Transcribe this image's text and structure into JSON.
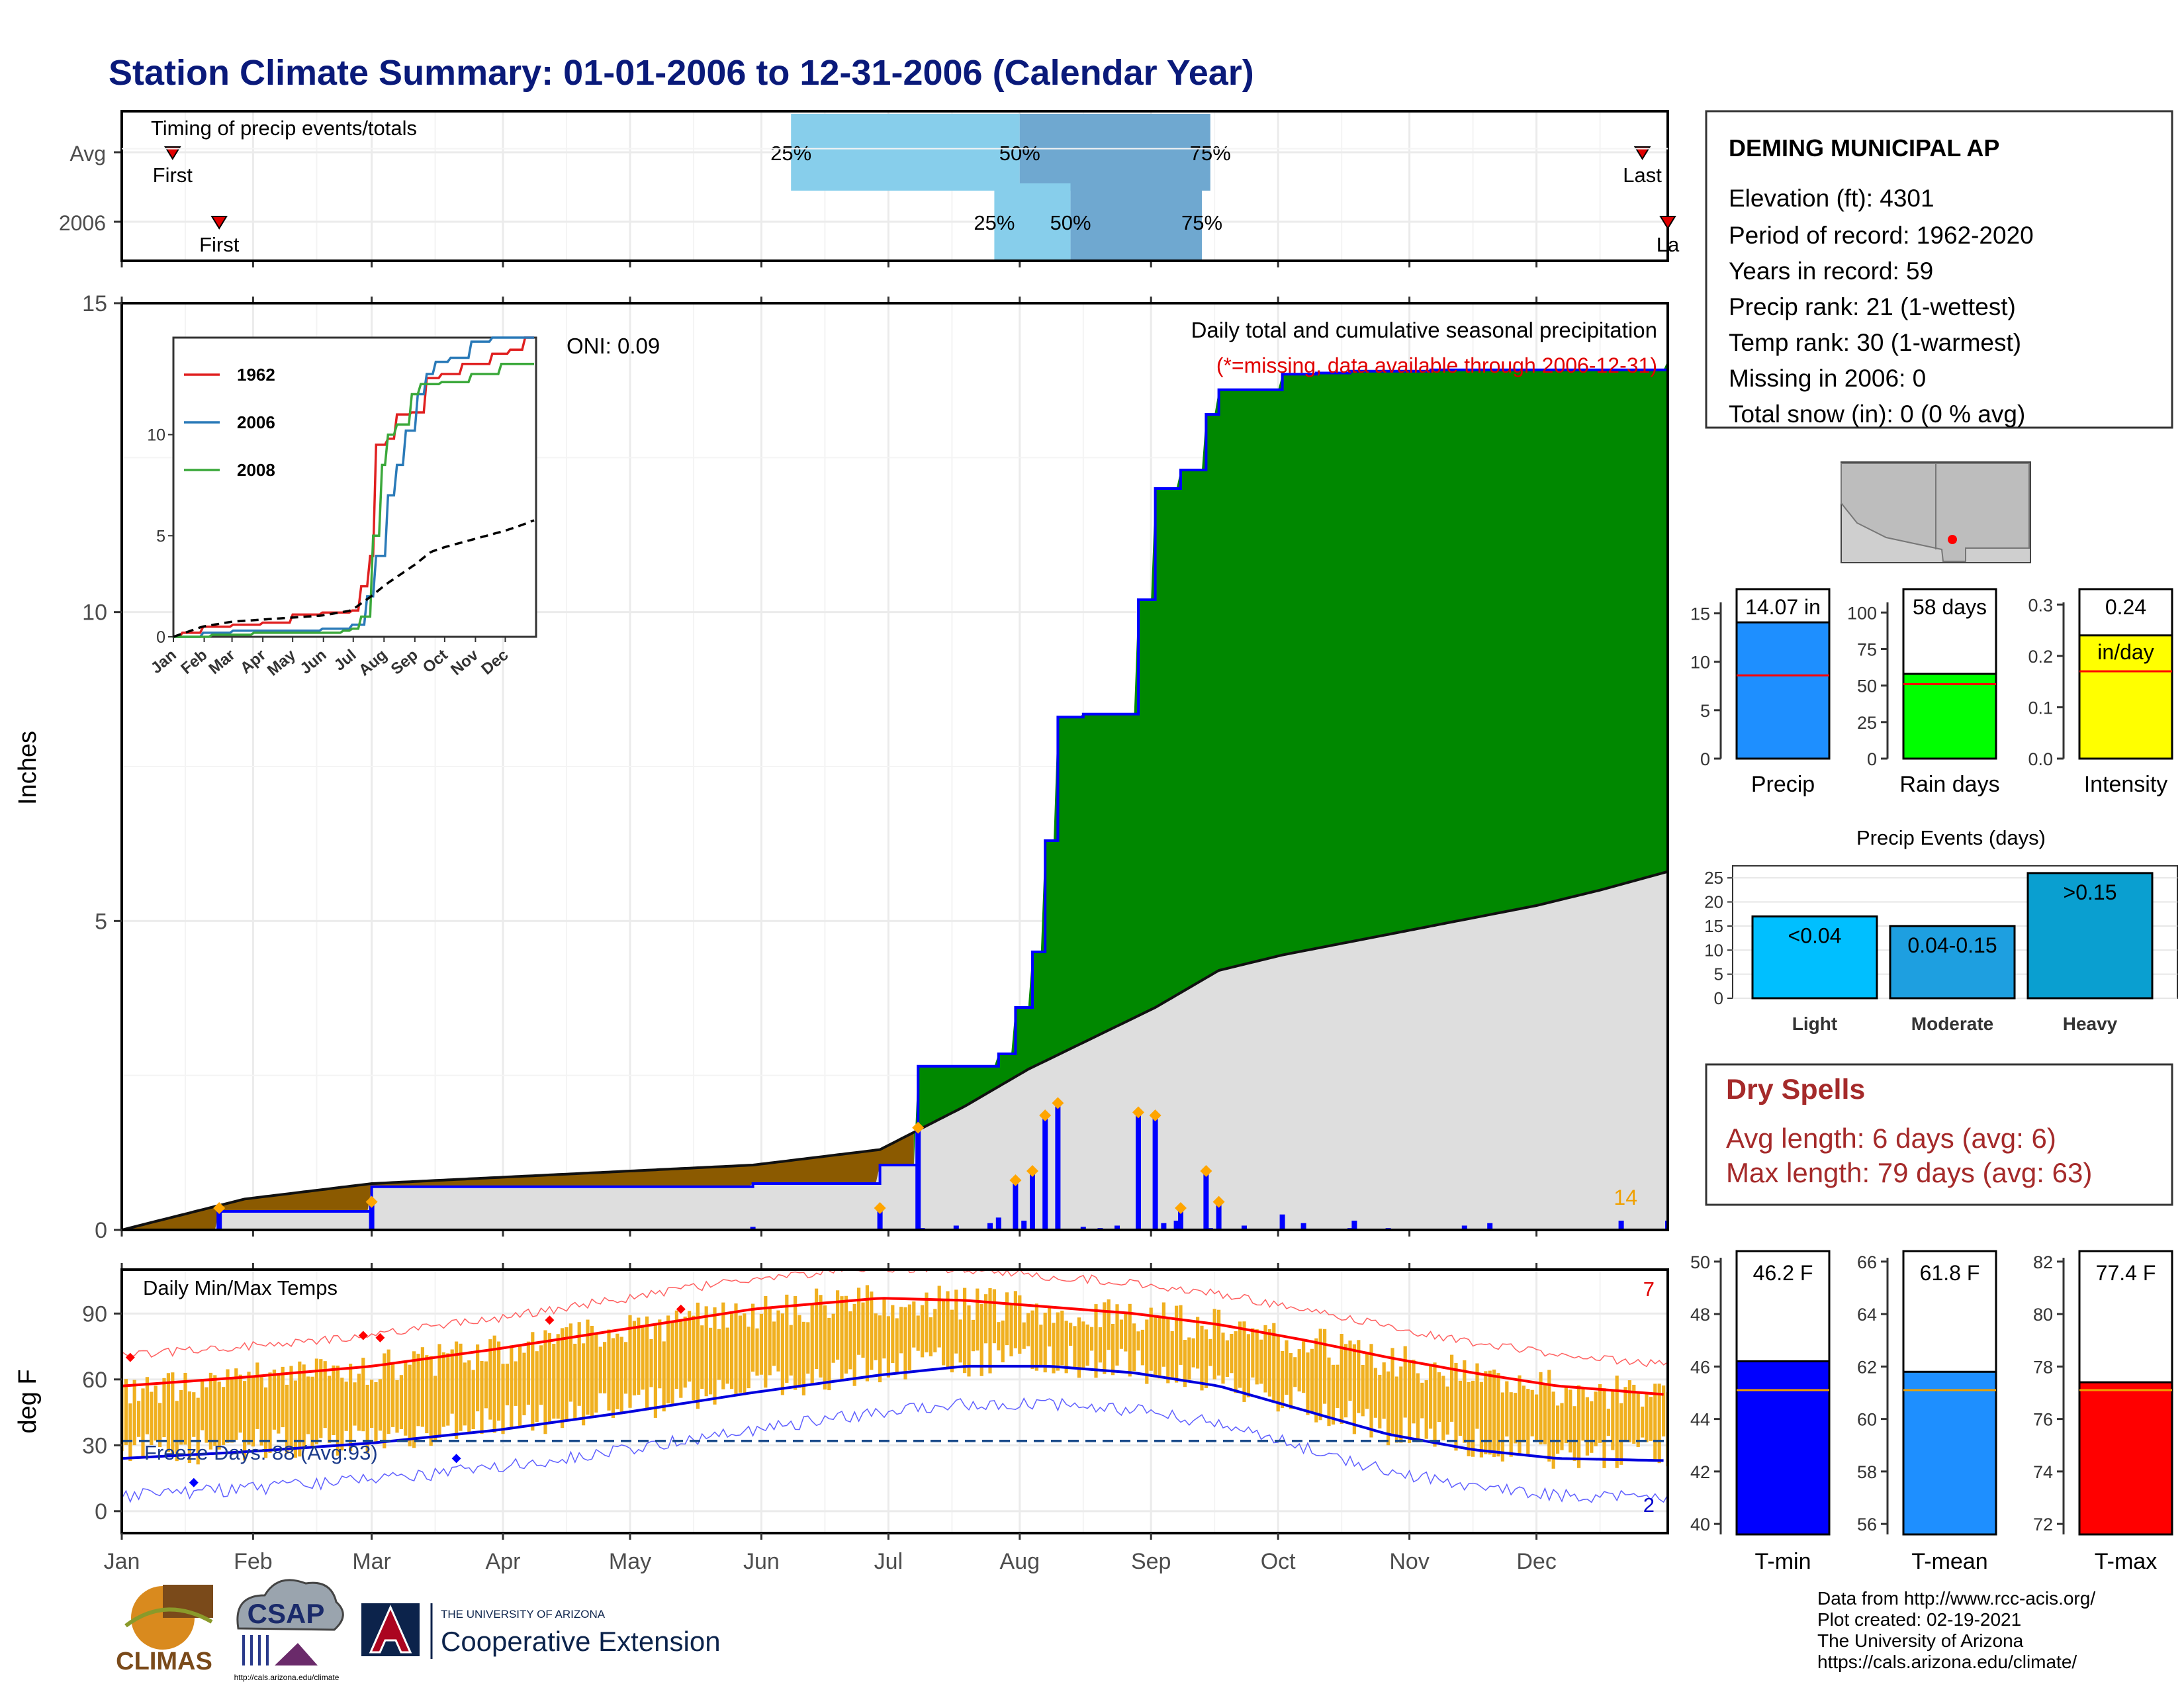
{
  "title": "Station Climate Summary: 01-01-2006 to 12-31-2006 (Calendar Year)",
  "timing": {
    "label": "Timing of precip events/totals",
    "rows": [
      {
        "name": "Avg",
        "first_label": "First",
        "last_label": "Last",
        "first_doy": 13,
        "last_doy": 360,
        "p25_doy": 159,
        "p50_doy": 213,
        "p75_doy": 258
      },
      {
        "name": "2006",
        "first_label": "First",
        "last_label": "La",
        "first_doy": 24,
        "last_doy": 366,
        "p25_doy": 207,
        "p50_doy": 225,
        "p75_doy": 256
      }
    ],
    "pct_labels": [
      "25%",
      "50%",
      "75%"
    ]
  },
  "precip_panel": {
    "ylabel": "Inches",
    "yticks": [
      "15",
      "10",
      "5",
      "0"
    ],
    "oni": "ONI: 0.09",
    "caption": "Daily total and cumulative seasonal precipitation",
    "missing_note": "(*=missing, data available through 2006-12-31)",
    "count_label": "14"
  },
  "inset": {
    "legend": [
      "1962",
      "2006",
      "2008"
    ],
    "yticks": [
      "0",
      "5",
      "10"
    ],
    "months": [
      "Jan",
      "Feb",
      "Mar",
      "Apr",
      "May",
      "Jun",
      "Jul",
      "Aug",
      "Sep",
      "Oct",
      "Nov",
      "Dec"
    ]
  },
  "temp_panel": {
    "ylabel": "deg F",
    "label": "Daily Min/Max Temps",
    "freeze": "Freeze Days: 88 (Avg:93)",
    "yticks": [
      "90",
      "60",
      "30",
      "0"
    ],
    "count_hot": "7",
    "count_cold": "2"
  },
  "months": [
    "Jan",
    "Feb",
    "Mar",
    "Apr",
    "May",
    "Jun",
    "Jul",
    "Aug",
    "Sep",
    "Oct",
    "Nov",
    "Dec"
  ],
  "station": {
    "name": "DEMING MUNICIPAL AP",
    "lines": [
      "Elevation (ft): 4301",
      "Period of record: 1962-2020",
      "Years in record: 59",
      "Precip rank: 21 (1-wettest)",
      "Temp rank: 30 (1-warmest)",
      "Missing in 2006: 0",
      "Total snow (in): 0 (0 % avg)"
    ]
  },
  "mini_bars": [
    {
      "label": "Precip",
      "value_label": "14.07 in",
      "yticks": [
        "15",
        "10",
        "5",
        "0"
      ],
      "color": "#1e8fff"
    },
    {
      "label": "Rain days",
      "value_label": "58 days",
      "yticks": [
        "100",
        "75",
        "50",
        "25",
        "0"
      ],
      "color": "#00ff00"
    },
    {
      "label": "Intensity",
      "value_label": "0.24",
      "value_label2": "in/day",
      "yticks": [
        "0.3",
        "0.2",
        "0.1",
        "0.0"
      ],
      "color": "#ffff00"
    }
  ],
  "events": {
    "title": "Precip Events (days)",
    "yticks": [
      "25",
      "20",
      "15",
      "10",
      "5",
      "0"
    ],
    "bars": [
      {
        "name": "Light",
        "label": "<0.04",
        "value": 17
      },
      {
        "name": "Moderate",
        "label": "0.04-0.15",
        "value": 15
      },
      {
        "name": "Heavy",
        "label": ">0.15",
        "value": 26
      }
    ]
  },
  "dry": {
    "title": "Dry Spells",
    "avg": "Avg length: 6 days (avg: 6)",
    "max": "Max length: 79 days (avg: 63)"
  },
  "temp_bars": [
    {
      "label": "T-min",
      "value_label": "46.2 F",
      "yticks": [
        "50",
        "48",
        "46",
        "44",
        "42",
        "40"
      ],
      "color": "#0000ff"
    },
    {
      "label": "T-mean",
      "value_label": "61.8 F",
      "yticks": [
        "66",
        "64",
        "62",
        "60",
        "58",
        "56"
      ],
      "color": "#1e8fff"
    },
    {
      "label": "T-max",
      "value_label": "77.4 F",
      "yticks": [
        "82",
        "80",
        "78",
        "76",
        "74",
        "72"
      ],
      "color": "#ff0000"
    }
  ],
  "footer": {
    "lines": [
      "Data from http://www.rcc-acis.org/",
      "Plot created: 02-19-2021",
      "The University of Arizona",
      "https://cals.arizona.edu/climate/"
    ],
    "logo_climas": "CLIMAS",
    "logo_csap": "CSAP",
    "logo_csap_url": "http://cals.arizona.edu/climate",
    "ua_small": "THE UNIVERSITY OF ARIZONA",
    "ua_big": "Cooperative Extension"
  },
  "chart_data": [
    {
      "type": "area",
      "title": "Daily total and cumulative seasonal precipitation",
      "ylabel": "Inches",
      "ylim": [
        0,
        15
      ],
      "series": [
        {
          "name": "2006",
          "x": [
            1,
            24,
            60,
            150,
            180,
            189,
            208,
            212,
            216,
            219,
            222,
            228,
            241,
            245,
            251,
            257,
            260,
            275,
            283,
            291,
            310,
            366
          ],
          "y": [
            0,
            0.3,
            0.7,
            0.75,
            1.05,
            2.65,
            2.85,
            3.6,
            4.5,
            6.3,
            8.3,
            8.35,
            10.2,
            12.0,
            12.3,
            13.2,
            13.6,
            13.85,
            13.87,
            13.9,
            13.92,
            14.07
          ]
        },
        {
          "name": "average",
          "x": [
            1,
            30,
            60,
            90,
            120,
            150,
            180,
            200,
            215,
            230,
            245,
            260,
            275,
            290,
            305,
            320,
            335,
            350,
            366
          ],
          "y": [
            0,
            0.5,
            0.75,
            0.85,
            0.95,
            1.05,
            1.3,
            2.0,
            2.6,
            3.1,
            3.6,
            4.2,
            4.45,
            4.65,
            4.85,
            5.05,
            5.25,
            5.5,
            5.8
          ]
        }
      ]
    },
    {
      "type": "line",
      "title": "Daily Min/Max Temps",
      "ylabel": "deg F",
      "ylim": [
        -10,
        110
      ],
      "series": [
        {
          "name": "avg max",
          "x": [
            1,
            30,
            60,
            90,
            120,
            150,
            180,
            200,
            220,
            240,
            260,
            280,
            300,
            320,
            340,
            366
          ],
          "y": [
            57,
            61,
            66,
            74,
            83,
            92,
            97,
            96,
            93,
            90,
            85,
            78,
            70,
            63,
            57,
            53
          ]
        },
        {
          "name": "avg min",
          "x": [
            1,
            30,
            60,
            90,
            120,
            150,
            180,
            200,
            220,
            240,
            260,
            280,
            300,
            320,
            340,
            366
          ],
          "y": [
            24,
            27,
            31,
            37,
            45,
            54,
            62,
            66,
            66,
            63,
            57,
            46,
            35,
            28,
            24,
            23
          ]
        }
      ]
    }
  ]
}
